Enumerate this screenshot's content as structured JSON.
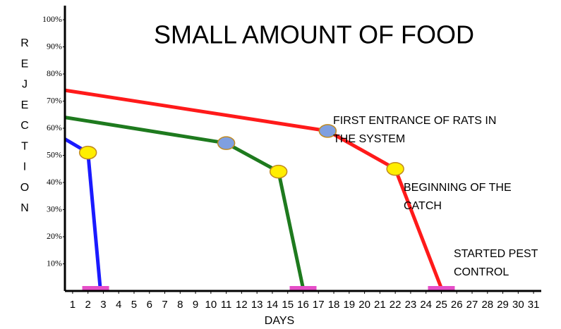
{
  "chart_data": {
    "type": "line",
    "title": "SMALL AMOUNT OF FOOD",
    "x_label": "DAYS",
    "y_label": "REJECTION",
    "xlim": [
      0.5,
      31.5
    ],
    "ylim": [
      0,
      100
    ],
    "xticks": [
      1,
      2,
      3,
      4,
      5,
      6,
      7,
      8,
      9,
      10,
      11,
      12,
      13,
      14,
      15,
      16,
      17,
      18,
      19,
      20,
      21,
      22,
      23,
      24,
      25,
      26,
      27,
      28,
      29,
      30,
      31
    ],
    "yticks": [
      {
        "value": 10,
        "label": "10%"
      },
      {
        "value": 20,
        "label": "20%"
      },
      {
        "value": 30,
        "label": "30%"
      },
      {
        "value": 40,
        "label": "40%"
      },
      {
        "value": 50,
        "label": "50%"
      },
      {
        "value": 60,
        "label": "60%"
      },
      {
        "value": 70,
        "label": "70%"
      },
      {
        "value": 80,
        "label": "80%"
      },
      {
        "value": 90,
        "label": "90%"
      },
      {
        "value": 100,
        "label": "100%"
      }
    ],
    "grid": false,
    "series": [
      {
        "color": "#1a1aff",
        "x": [
          0.5,
          2,
          2.8
        ],
        "values": [
          56,
          51,
          1
        ],
        "marker_colors": [
          null,
          "#ffee00",
          null
        ]
      },
      {
        "color": "#1e7a1e",
        "x": [
          0.5,
          11,
          14.4,
          16
        ],
        "values": [
          64,
          54.5,
          44,
          1
        ],
        "marker_colors": [
          null,
          "#7f9fe0",
          "#ffee00",
          null
        ]
      },
      {
        "color": "#ff1a1a",
        "x": [
          0.5,
          17.6,
          22,
          25
        ],
        "values": [
          74,
          59,
          45,
          1
        ],
        "marker_colors": [
          null,
          "#7f9fe0",
          "#ffee00",
          null
        ]
      }
    ],
    "pest_control_x": [
      2.5,
      16,
      25
    ],
    "pest_control_color": "#e64ec8",
    "annotations": [
      {
        "lines": [
          "FIRST ENTRANCE OF RATS IN",
          "THE SYSTEM"
        ]
      },
      {
        "lines": [
          "BEGINNING OF THE",
          "CATCH"
        ]
      },
      {
        "lines": [
          "STARTED PEST",
          "CONTROL"
        ]
      }
    ]
  }
}
